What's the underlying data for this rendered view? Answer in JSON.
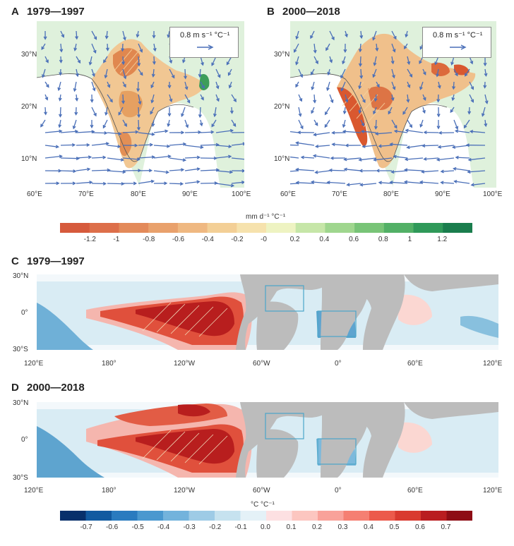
{
  "panels": {
    "A": {
      "letter": "A",
      "title": "1979—1997",
      "ref_vector": "0.8 m s⁻¹ °C⁻¹"
    },
    "B": {
      "letter": "B",
      "title": "2000—2018",
      "ref_vector": "0.8 m s⁻¹ °C⁻¹"
    },
    "C": {
      "letter": "C",
      "title": "1979—1997"
    },
    "D": {
      "letter": "D",
      "title": "2000—2018"
    }
  },
  "india_axes": {
    "lon_ticks": [
      "60°E",
      "70°E",
      "80°E",
      "90°E",
      "100°E"
    ],
    "lat_ticks": [
      "30°N",
      "20°N",
      "10°N"
    ]
  },
  "global_axes": {
    "lon_ticks": [
      "120°E",
      "180°",
      "120°W",
      "60°W",
      "0°",
      "60°E",
      "120°E"
    ],
    "lat_ticks": [
      "30°N",
      "0°",
      "30°S"
    ]
  },
  "precip_colorbar": {
    "units": "mm d⁻¹ °C⁻¹",
    "ticks": [
      "-1.2",
      "-1",
      "-0.8",
      "-0.6",
      "-0.4",
      "-0.2",
      "-0",
      "0.2",
      "0.4",
      "0.6",
      "0.8",
      "1",
      "1.2"
    ],
    "colors": [
      "#d65a3c",
      "#dd6f4a",
      "#e38a5a",
      "#e9a16c",
      "#efb881",
      "#f3cf96",
      "#f6e2ad",
      "#eef3c2",
      "#c6e6a8",
      "#9fd68e",
      "#78c477",
      "#52b066",
      "#2f9959",
      "#1a7d4d"
    ]
  },
  "sst_colorbar": {
    "units": "°C °C⁻¹",
    "ticks": [
      "-0.7",
      "-0.6",
      "-0.5",
      "-0.4",
      "-0.3",
      "-0.2",
      "-0.1",
      "0.0",
      "0.1",
      "0.2",
      "0.3",
      "0.4",
      "0.5",
      "0.6",
      "0.7"
    ],
    "colors": [
      "#08306b",
      "#125aa0",
      "#2a7bbf",
      "#4a98cf",
      "#73b3dc",
      "#9ecbe6",
      "#c6e2ef",
      "#e4f1f7",
      "#fde0e2",
      "#fcc6c0",
      "#f9a29a",
      "#f57f72",
      "#ec5a4b",
      "#d93a2f",
      "#b91d20",
      "#8e0d15"
    ]
  },
  "colors": {
    "land_bg": "#dff1dc",
    "continent_gray": "#bcbcbc",
    "vector": "#4a6fb8",
    "box_outline": "#4aa6c9"
  }
}
